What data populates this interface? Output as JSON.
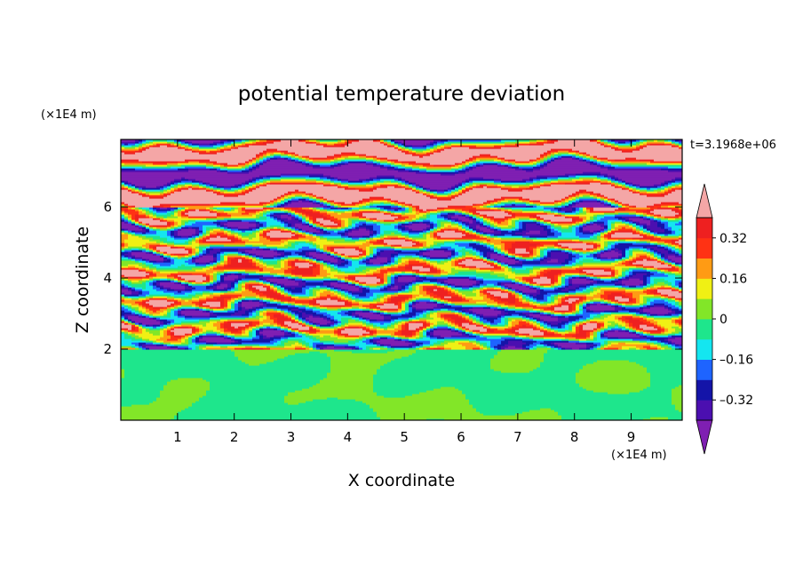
{
  "chart_data": {
    "type": "heatmap",
    "title": "potential temperature deviation",
    "xlabel": "X coordinate",
    "ylabel": "Z coordinate",
    "x_unit": "(×1E4 m)",
    "y_unit": "(×1E4 m)",
    "time_label": "t=3.1968e+06",
    "xlim": [
      0,
      9.9
    ],
    "ylim": [
      0,
      7.9
    ],
    "x_ticks": [
      1,
      2,
      3,
      4,
      5,
      6,
      7,
      8,
      9
    ],
    "y_ticks": [
      2,
      4,
      6
    ],
    "grid": false,
    "legend": "right colorbar",
    "colorbar": {
      "levels": [
        -0.4,
        -0.32,
        -0.24,
        -0.16,
        -0.08,
        0,
        0.08,
        0.16,
        0.24,
        0.32,
        0.4
      ],
      "tick_values": [
        -0.32,
        -0.16,
        0,
        0.16,
        0.32
      ],
      "tick_labels": [
        "–0.32",
        "–0.16",
        "0",
        "0.16",
        "0.32"
      ],
      "under_color": "#7f1fb2",
      "over_color": "#f4a6a6",
      "colors": [
        "#4b0fb0",
        "#1414a8",
        "#1e64ff",
        "#14e6f0",
        "#1ee68c",
        "#82e628",
        "#f0f014",
        "#ff9b14",
        "#ff3214",
        "#ee2020"
      ]
    },
    "layers": [
      {
        "z_range": [
          0,
          2
        ],
        "pattern": "near-zero (-0.08 to 0.08), green tones",
        "values": [
          -0.04,
          0.04
        ]
      },
      {
        "z_range": [
          2,
          6
        ],
        "pattern": "horizontal alternating layers spanning full color range",
        "values": [
          -0.4,
          0.4
        ]
      },
      {
        "z_range": [
          6,
          7.9
        ],
        "pattern": "strong bands alternating below -0.4 and above 0.4",
        "values": [
          -0.45,
          0.45
        ]
      }
    ]
  }
}
